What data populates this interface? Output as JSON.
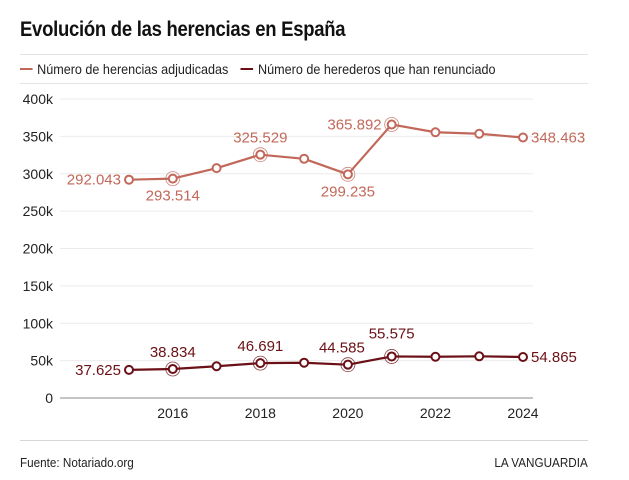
{
  "title": "Evolución de las herencias en España",
  "footer": {
    "source": "Fuente: Notariado.org",
    "brand": "LA VANGUARDIA"
  },
  "colors": {
    "series1": "#c2685a",
    "series2": "#6b1016",
    "grid": "#ebebeb",
    "axis": "#888888"
  },
  "chart_data": {
    "type": "line",
    "title": "Evolución de las herencias en España",
    "xlabel": "",
    "ylabel": "",
    "x": [
      2015,
      2016,
      2017,
      2018,
      2019,
      2020,
      2021,
      2022,
      2023,
      2024
    ],
    "x_ticks": [
      "2016",
      "2018",
      "2020",
      "2022",
      "2024"
    ],
    "x_tick_values": [
      2016,
      2018,
      2020,
      2022,
      2024
    ],
    "y_ticks": [
      "0",
      "50k",
      "100k",
      "150k",
      "200k",
      "250k",
      "300k",
      "350k",
      "400k"
    ],
    "y_tick_values": [
      0,
      50000,
      100000,
      150000,
      200000,
      250000,
      300000,
      350000,
      400000
    ],
    "ylim": [
      0,
      400000
    ],
    "xlim": [
      2014,
      2024
    ],
    "grid": true,
    "legend_position": "top-left",
    "series": [
      {
        "name": "Número de herencias adjudicadas",
        "color": "#c2685a",
        "values": [
          292043,
          293514,
          307500,
          325529,
          320000,
          299235,
          365892,
          355500,
          353500,
          348463
        ],
        "labels": [
          {
            "index": 0,
            "text": "292.043",
            "highlight": false
          },
          {
            "index": 1,
            "text": "293.514",
            "highlight": true
          },
          {
            "index": 3,
            "text": "325.529",
            "highlight": true
          },
          {
            "index": 5,
            "text": "299.235",
            "highlight": true
          },
          {
            "index": 6,
            "text": "365.892",
            "highlight": true
          },
          {
            "index": 9,
            "text": "348.463",
            "highlight": false
          }
        ]
      },
      {
        "name": "Número de herederos que han renunciado",
        "color": "#6b1016",
        "values": [
          37625,
          38834,
          42500,
          46691,
          47200,
          44585,
          55575,
          55200,
          55800,
          54865
        ],
        "labels": [
          {
            "index": 0,
            "text": "37.625",
            "highlight": false
          },
          {
            "index": 1,
            "text": "38.834",
            "highlight": true
          },
          {
            "index": 3,
            "text": "46.691",
            "highlight": true
          },
          {
            "index": 5,
            "text": "44.585",
            "highlight": true
          },
          {
            "index": 6,
            "text": "55.575",
            "highlight": true
          },
          {
            "index": 9,
            "text": "54.865",
            "highlight": false
          }
        ]
      }
    ]
  }
}
